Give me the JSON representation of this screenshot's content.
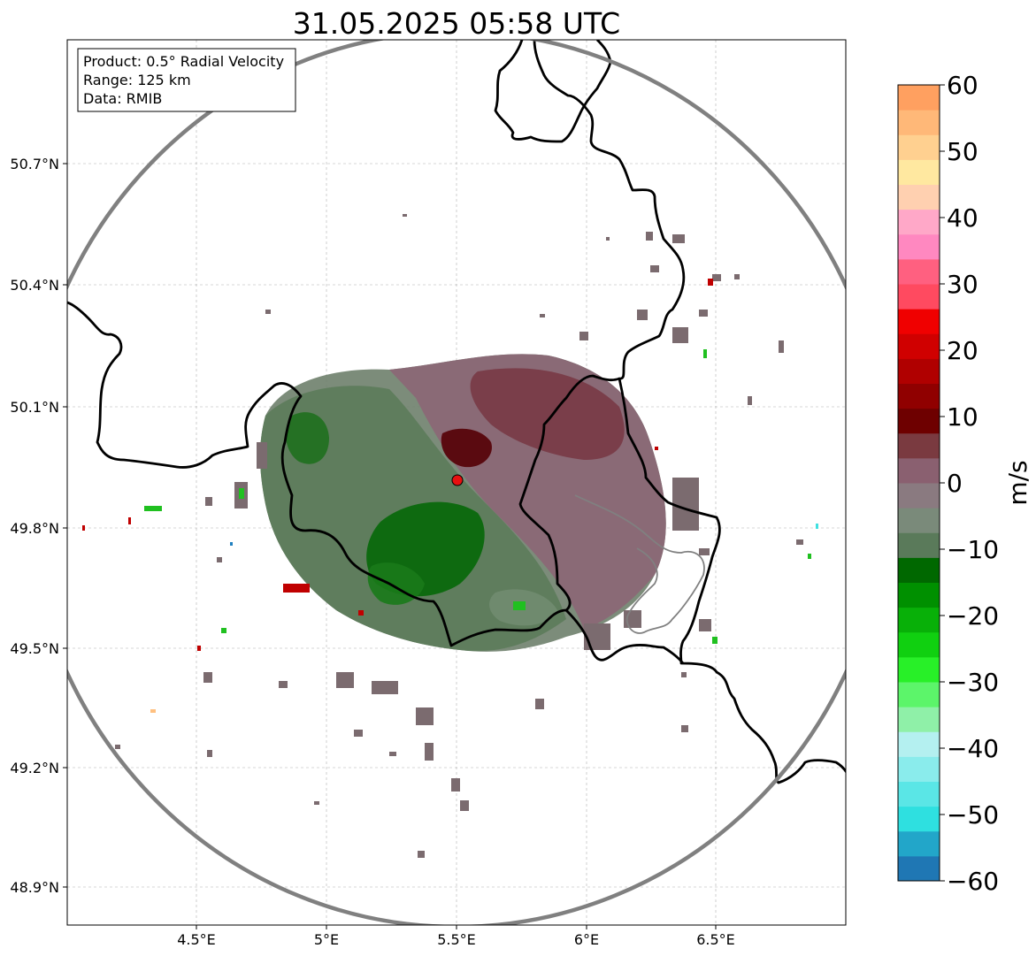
{
  "title": "31.05.2025 05:58 UTC",
  "info_box": {
    "product": "Product: 0.5° Radial Velocity",
    "range": "Range: 125 km",
    "data": "Data: RMIB"
  },
  "axes": {
    "lon_ticks": [
      "4.5°E",
      "5°E",
      "5.5°E",
      "6°E",
      "6.5°E"
    ],
    "lat_ticks": [
      "50.7°N",
      "50.4°N",
      "50.1°N",
      "49.8°N",
      "49.5°N",
      "49.2°N",
      "48.9°N"
    ]
  },
  "colorbar": {
    "unit": "m/s",
    "ticks": [
      "60",
      "50",
      "40",
      "30",
      "20",
      "10",
      "0",
      "−10",
      "−20",
      "−30",
      "−40",
      "−50",
      "−60"
    ],
    "colors": [
      "#1f77b4",
      "#22a6c9",
      "#2ee0e0",
      "#5ae6e6",
      "#8aecec",
      "#b4f0f0",
      "#8ff0a8",
      "#5cf56a",
      "#28f028",
      "#10d010",
      "#08b008",
      "#009000",
      "#006800",
      "#5a7a5a",
      "#7a8a7a",
      "#8a7a80",
      "#8a6070",
      "#7a3a40",
      "#6e0000",
      "#900000",
      "#b00000",
      "#d00000",
      "#f00000",
      "#ff4a60",
      "#ff6080",
      "#ff88c0",
      "#ffa8c8",
      "#ffd0b0",
      "#ffe8a0",
      "#ffd090",
      "#ffb878",
      "#ffa060"
    ]
  },
  "radar": {
    "site_lon": 5.5,
    "site_lat": 49.915,
    "site_color": "#e81010"
  }
}
